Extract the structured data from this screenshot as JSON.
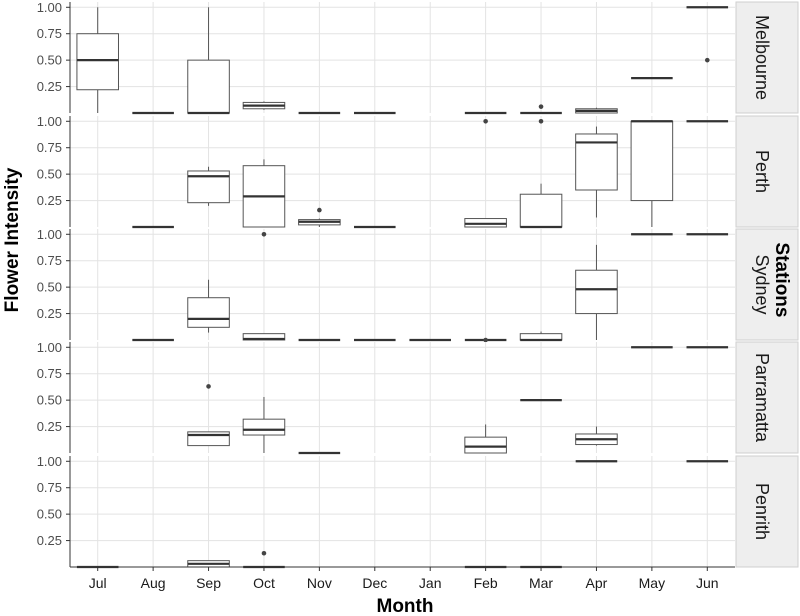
{
  "chart_data": {
    "type": "boxplot",
    "facet_type": "facet_grid_rows",
    "xlabel": "Month",
    "ylabel": "Flower Intensity",
    "legend_title": "Stations",
    "categories": [
      "Jul",
      "Aug",
      "Sep",
      "Oct",
      "Nov",
      "Dec",
      "Jan",
      "Feb",
      "Mar",
      "Apr",
      "May",
      "Jun"
    ],
    "y_ticks": [
      0.25,
      0.5,
      0.75,
      1.0
    ],
    "y_tick_labels": [
      "0.25",
      "0.50",
      "0.75",
      "1.00"
    ],
    "ylim": [
      0,
      1.05
    ],
    "grid": true,
    "colors": {
      "box_fill": "#ffffff",
      "box_stroke": "#555555",
      "median": "#333333",
      "grid": "#e3e3e3",
      "strip_bg": "#eeeeee",
      "outlier": "#444444"
    },
    "panels": [
      {
        "station": "Melbourne",
        "boxes": [
          {
            "month": "Jul",
            "min": 0.0,
            "q1": 0.22,
            "median": 0.5,
            "q3": 0.75,
            "max": 1.0,
            "outliers": []
          },
          {
            "month": "Aug",
            "min": 0.0,
            "q1": 0.0,
            "median": 0.0,
            "q3": 0.0,
            "max": 0.0,
            "outliers": []
          },
          {
            "month": "Sep",
            "min": 0.0,
            "q1": 0.0,
            "median": 0.0,
            "q3": 0.5,
            "max": 1.0,
            "outliers": []
          },
          {
            "month": "Oct",
            "min": 0.03,
            "q1": 0.04,
            "median": 0.07,
            "q3": 0.1,
            "max": 0.11,
            "outliers": []
          },
          {
            "month": "Nov",
            "min": 0.0,
            "q1": 0.0,
            "median": 0.0,
            "q3": 0.0,
            "max": 0.0,
            "outliers": []
          },
          {
            "month": "Dec",
            "min": 0.0,
            "q1": 0.0,
            "median": 0.0,
            "q3": 0.0,
            "max": 0.0,
            "outliers": []
          },
          {
            "month": "Feb",
            "min": 0.0,
            "q1": 0.0,
            "median": 0.0,
            "q3": 0.0,
            "max": 0.0,
            "outliers": []
          },
          {
            "month": "Mar",
            "min": 0.0,
            "q1": 0.0,
            "median": 0.0,
            "q3": 0.0,
            "max": 0.0,
            "outliers": [
              0.06
            ]
          },
          {
            "month": "Apr",
            "min": 0.0,
            "q1": 0.0,
            "median": 0.02,
            "q3": 0.04,
            "max": 0.05,
            "outliers": []
          },
          {
            "month": "May",
            "min": 0.33,
            "q1": 0.33,
            "median": 0.33,
            "q3": 0.33,
            "max": 0.33,
            "outliers": []
          },
          {
            "month": "Jun",
            "min": 1.0,
            "q1": 1.0,
            "median": 1.0,
            "q3": 1.0,
            "max": 1.0,
            "outliers": [
              0.5
            ]
          }
        ]
      },
      {
        "station": "Perth",
        "boxes": [
          {
            "month": "Aug",
            "min": 0.0,
            "q1": 0.0,
            "median": 0.0,
            "q3": 0.0,
            "max": 0.0,
            "outliers": []
          },
          {
            "month": "Sep",
            "min": 0.2,
            "q1": 0.23,
            "median": 0.48,
            "q3": 0.53,
            "max": 0.57,
            "outliers": []
          },
          {
            "month": "Oct",
            "min": 0.0,
            "q1": 0.0,
            "median": 0.29,
            "q3": 0.58,
            "max": 0.64,
            "outliers": []
          },
          {
            "month": "Nov",
            "min": 0.0,
            "q1": 0.02,
            "median": 0.05,
            "q3": 0.07,
            "max": 0.08,
            "outliers": [
              0.16
            ]
          },
          {
            "month": "Dec",
            "min": 0.0,
            "q1": 0.0,
            "median": 0.0,
            "q3": 0.0,
            "max": 0.0,
            "outliers": []
          },
          {
            "month": "Feb",
            "min": 0.0,
            "q1": 0.0,
            "median": 0.03,
            "q3": 0.08,
            "max": 0.08,
            "outliers": [
              1.0
            ]
          },
          {
            "month": "Mar",
            "min": 0.0,
            "q1": 0.0,
            "median": 0.0,
            "q3": 0.31,
            "max": 0.41,
            "outliers": [
              1.0
            ]
          },
          {
            "month": "Apr",
            "min": 0.09,
            "q1": 0.35,
            "median": 0.8,
            "q3": 0.88,
            "max": 0.95,
            "outliers": []
          },
          {
            "month": "May",
            "min": 0.0,
            "q1": 0.25,
            "median": 1.0,
            "q3": 1.0,
            "max": 1.0,
            "outliers": []
          },
          {
            "month": "Jun",
            "min": 1.0,
            "q1": 1.0,
            "median": 1.0,
            "q3": 1.0,
            "max": 1.0,
            "outliers": []
          }
        ]
      },
      {
        "station": "Sydney",
        "boxes": [
          {
            "month": "Aug",
            "min": 0.0,
            "q1": 0.0,
            "median": 0.0,
            "q3": 0.0,
            "max": 0.0,
            "outliers": []
          },
          {
            "month": "Sep",
            "min": 0.07,
            "q1": 0.12,
            "median": 0.2,
            "q3": 0.4,
            "max": 0.57,
            "outliers": []
          },
          {
            "month": "Oct",
            "min": 0.0,
            "q1": 0.0,
            "median": 0.01,
            "q3": 0.06,
            "max": 0.06,
            "outliers": [
              1.0
            ]
          },
          {
            "month": "Nov",
            "min": 0.0,
            "q1": 0.0,
            "median": 0.0,
            "q3": 0.0,
            "max": 0.0,
            "outliers": []
          },
          {
            "month": "Dec",
            "min": 0.0,
            "q1": 0.0,
            "median": 0.0,
            "q3": 0.0,
            "max": 0.0,
            "outliers": []
          },
          {
            "month": "Jan",
            "min": 0.0,
            "q1": 0.0,
            "median": 0.0,
            "q3": 0.0,
            "max": 0.0,
            "outliers": []
          },
          {
            "month": "Feb",
            "min": 0.0,
            "q1": 0.0,
            "median": 0.0,
            "q3": 0.0,
            "max": 0.0,
            "outliers": [
              0.0
            ]
          },
          {
            "month": "Mar",
            "min": 0.0,
            "q1": 0.0,
            "median": 0.0,
            "q3": 0.06,
            "max": 0.08,
            "outliers": []
          },
          {
            "month": "Apr",
            "min": 0.0,
            "q1": 0.25,
            "median": 0.48,
            "q3": 0.66,
            "max": 0.9,
            "outliers": []
          },
          {
            "month": "May",
            "min": 1.0,
            "q1": 1.0,
            "median": 1.0,
            "q3": 1.0,
            "max": 1.0,
            "outliers": []
          },
          {
            "month": "Jun",
            "min": 1.0,
            "q1": 1.0,
            "median": 1.0,
            "q3": 1.0,
            "max": 1.0,
            "outliers": []
          }
        ]
      },
      {
        "station": "Parramatta",
        "boxes": [
          {
            "month": "Sep",
            "min": 0.07,
            "q1": 0.07,
            "median": 0.17,
            "q3": 0.2,
            "max": 0.2,
            "outliers": [
              0.63
            ]
          },
          {
            "month": "Oct",
            "min": 0.0,
            "q1": 0.17,
            "median": 0.22,
            "q3": 0.32,
            "max": 0.53,
            "outliers": []
          },
          {
            "month": "Nov",
            "min": 0.0,
            "q1": 0.0,
            "median": 0.0,
            "q3": 0.0,
            "max": 0.0,
            "outliers": []
          },
          {
            "month": "Feb",
            "min": 0.0,
            "q1": 0.0,
            "median": 0.06,
            "q3": 0.15,
            "max": 0.27,
            "outliers": []
          },
          {
            "month": "Mar",
            "min": 0.5,
            "q1": 0.5,
            "median": 0.5,
            "q3": 0.5,
            "max": 0.5,
            "outliers": []
          },
          {
            "month": "Apr",
            "min": 0.07,
            "q1": 0.08,
            "median": 0.13,
            "q3": 0.18,
            "max": 0.25,
            "outliers": []
          },
          {
            "month": "May",
            "min": 1.0,
            "q1": 1.0,
            "median": 1.0,
            "q3": 1.0,
            "max": 1.0,
            "outliers": []
          },
          {
            "month": "Jun",
            "min": 1.0,
            "q1": 1.0,
            "median": 1.0,
            "q3": 1.0,
            "max": 1.0,
            "outliers": []
          }
        ]
      },
      {
        "station": "Penrith",
        "boxes": [
          {
            "month": "Jul",
            "min": 0.0,
            "q1": 0.0,
            "median": 0.0,
            "q3": 0.0,
            "max": 0.0,
            "outliers": []
          },
          {
            "month": "Sep",
            "min": 0.0,
            "q1": 0.0,
            "median": 0.03,
            "q3": 0.06,
            "max": 0.06,
            "outliers": []
          },
          {
            "month": "Oct",
            "min": 0.0,
            "q1": 0.0,
            "median": 0.0,
            "q3": 0.0,
            "max": 0.0,
            "outliers": [
              0.13
            ]
          },
          {
            "month": "Feb",
            "min": 0.0,
            "q1": 0.0,
            "median": 0.0,
            "q3": 0.0,
            "max": 0.0,
            "outliers": []
          },
          {
            "month": "Mar",
            "min": 0.0,
            "q1": 0.0,
            "median": 0.0,
            "q3": 0.0,
            "max": 0.0,
            "outliers": []
          },
          {
            "month": "Apr",
            "min": 1.0,
            "q1": 1.0,
            "median": 1.0,
            "q3": 1.0,
            "max": 1.0,
            "outliers": []
          },
          {
            "month": "Jun",
            "min": 1.0,
            "q1": 1.0,
            "median": 1.0,
            "q3": 1.0,
            "max": 1.0,
            "outliers": []
          }
        ]
      }
    ]
  }
}
